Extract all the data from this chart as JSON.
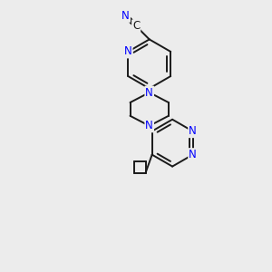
{
  "bg_color": "#ececec",
  "bond_color": "#1a1a1a",
  "atom_color": "#0000ff",
  "carbon_color": "#1a1a1a",
  "font_size_atom": 8.5,
  "line_width": 1.4,
  "fig_w": 3.0,
  "fig_h": 3.0,
  "dpi": 100,
  "xlim": [
    0,
    10
  ],
  "ylim": [
    0,
    10
  ]
}
